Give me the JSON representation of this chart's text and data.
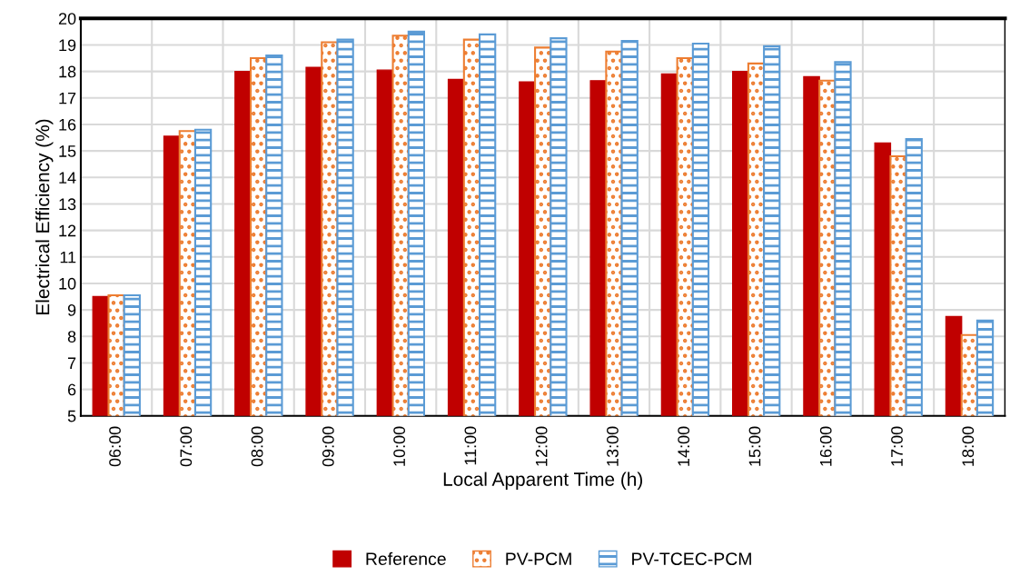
{
  "chart_data": {
    "type": "bar",
    "xlabel": "Local Apparent Time (h)",
    "ylabel": "Electrical Efficiency (%)",
    "categories": [
      "06:00",
      "07:00",
      "08:00",
      "09:00",
      "10:00",
      "11:00",
      "12:00",
      "13:00",
      "14:00",
      "15:00",
      "16:00",
      "17:00",
      "18:00"
    ],
    "series": [
      {
        "name": "Reference",
        "color": "#c00000",
        "values": [
          9.5,
          15.55,
          18.0,
          18.15,
          18.05,
          17.7,
          17.6,
          17.65,
          17.9,
          18.0,
          17.8,
          15.3,
          8.75
        ]
      },
      {
        "name": "PV-PCM",
        "color": "#ed7d31",
        "values": [
          9.55,
          15.75,
          18.5,
          19.1,
          19.35,
          19.2,
          18.9,
          18.75,
          18.5,
          18.3,
          17.65,
          14.8,
          8.05
        ]
      },
      {
        "name": "PV-TCEC-PCM",
        "color": "#5b9bd5",
        "values": [
          9.55,
          15.8,
          18.6,
          19.2,
          19.5,
          19.4,
          19.25,
          19.15,
          19.05,
          18.95,
          18.35,
          15.45,
          8.6
        ]
      }
    ],
    "ylim": [
      5,
      20
    ],
    "yticks": [
      5,
      6,
      7,
      8,
      9,
      10,
      11,
      12,
      13,
      14,
      15,
      16,
      17,
      18,
      19,
      20
    ],
    "grid": true,
    "legend": "bottom"
  }
}
